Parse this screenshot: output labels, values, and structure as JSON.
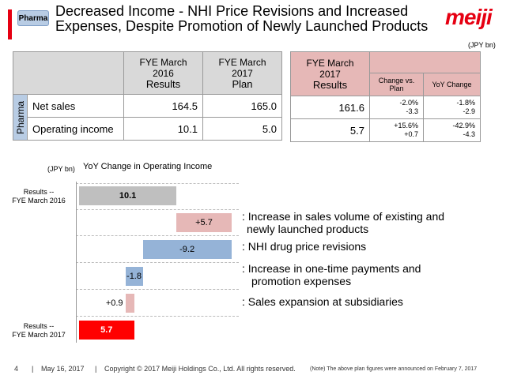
{
  "header": {
    "tag": "Pharma",
    "title_line1": "Decreased Income - NHI Price Revisions and Increased",
    "title_line2": "Expenses, Despite Promotion of Newly Launched Products",
    "logo": "meiji",
    "unit": "(JPY bn)"
  },
  "table": {
    "segment": "Pharma",
    "col_fy16_line1": "FYE March 2016",
    "col_fy16_line2": "Results",
    "col_fy17plan_line1": "FYE March 2017",
    "col_fy17plan_line2": "Plan",
    "col_fy17res_line1": "FYE March 2017",
    "col_fy17res_line2": "Results",
    "col_vs_plan": "Change vs. Plan",
    "col_yoy": "YoY Change",
    "rows": [
      {
        "label": "Net sales",
        "fy16": "164.5",
        "plan": "165.0",
        "res": "161.6",
        "vs_pct": "-2.0%",
        "vs_abs": "-3.3",
        "yoy_pct": "-1.8%",
        "yoy_abs": "-2.9"
      },
      {
        "label": "Operating income",
        "fy16": "10.1",
        "plan": "5.0",
        "res": "5.7",
        "vs_pct": "+15.6%",
        "vs_abs": "+0.7",
        "yoy_pct": "-42.9%",
        "yoy_abs": "-4.3"
      }
    ]
  },
  "waterfall": {
    "unit": "(JPY bn)",
    "title": "YoY Change in Operating Income",
    "start_label_1": "Results --",
    "start_label_2": "FYE March 2016",
    "end_label_1": "Results --",
    "end_label_2": "FYE March 2017",
    "colors": {
      "total": "#bfbfbf",
      "pos": "#e6b8b7",
      "neg": "#95b3d7",
      "final": "#ff0000"
    }
  },
  "chart_data": {
    "type": "waterfall",
    "title": "YoY Change in Operating Income",
    "ylabel": "(JPY bn)",
    "categories": [
      "Results -- FYE March 2016",
      "Increase in sales volume of existing and newly launched products",
      "NHI drug price revisions",
      "Increase in one-time payments and promotion expenses",
      "Sales expansion at subsidiaries",
      "Results -- FYE March 2017"
    ],
    "values": [
      10.1,
      5.7,
      -9.2,
      -1.8,
      0.9,
      5.7
    ],
    "labels": [
      "10.1",
      "+5.7",
      "-9.2",
      "-1.8",
      "+0.9",
      "5.7"
    ],
    "descriptions": [
      ": Increase in sales volume of existing and",
      "newly launched products",
      ": NHI drug price revisions",
      ": Increase in one-time payments and",
      "promotion expenses",
      ": Sales expansion at subsidiaries"
    ]
  },
  "footer": {
    "page": "4",
    "date": "May 16, 2017",
    "copyright": "Copyright © 2017 Meiji Holdings Co., Ltd. All rights reserved.",
    "note": "(Note) The above plan figures were announced on February 7, 2017"
  }
}
